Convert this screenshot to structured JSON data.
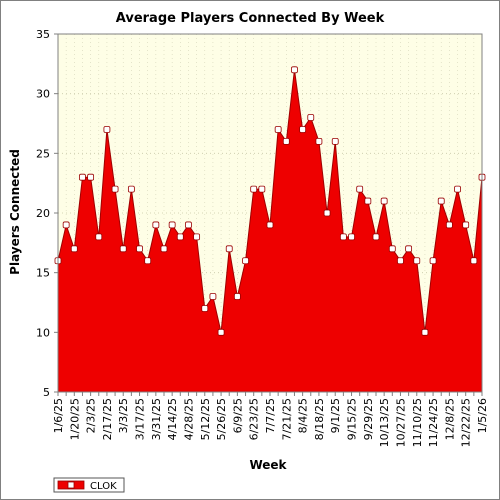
{
  "chart_data": {
    "type": "area",
    "title": "Average Players Connected By Week",
    "xlabel": "Week",
    "ylabel": "Players Connected",
    "ylim": [
      5,
      35
    ],
    "yticks": [
      5,
      10,
      15,
      20,
      25,
      30,
      35
    ],
    "grid": true,
    "legend_position": "bottom-left",
    "x": [
      "1/6/25",
      "1/13/25",
      "1/20/25",
      "1/27/25",
      "2/3/25",
      "2/10/25",
      "2/17/25",
      "2/24/25",
      "3/3/25",
      "3/10/25",
      "3/17/25",
      "3/24/25",
      "3/31/25",
      "4/7/25",
      "4/14/25",
      "4/21/25",
      "4/28/25",
      "5/5/25",
      "5/12/25",
      "5/19/25",
      "5/26/25",
      "6/2/25",
      "6/9/25",
      "6/16/25",
      "6/23/25",
      "6/30/25",
      "7/7/25",
      "7/14/25",
      "7/21/25",
      "7/28/25",
      "8/4/25",
      "8/11/25",
      "8/18/25",
      "8/25/25",
      "9/1/25",
      "9/8/25",
      "9/15/25",
      "9/22/25",
      "9/29/25",
      "10/6/25",
      "10/13/25",
      "10/20/25",
      "10/27/25",
      "11/3/25",
      "11/10/25",
      "11/17/25",
      "11/24/25",
      "12/1/25",
      "12/8/25",
      "12/15/25",
      "12/22/25",
      "12/29/25",
      "1/5/26"
    ],
    "tick_labels": [
      "1/6/25",
      "1/20/25",
      "2/3/25",
      "2/17/25",
      "3/3/25",
      "3/17/25",
      "3/31/25",
      "4/14/25",
      "4/28/25",
      "5/12/25",
      "5/26/25",
      "6/9/25",
      "6/23/25",
      "7/7/25",
      "7/21/25",
      "8/4/25",
      "8/18/25",
      "9/1/25",
      "9/15/25",
      "9/29/25",
      "10/13/25",
      "10/27/25",
      "11/10/25",
      "11/24/25",
      "12/8/25",
      "12/22/25",
      "1/5/26"
    ],
    "series": [
      {
        "name": "CLOK",
        "color": "#ee0000",
        "values": [
          16,
          19,
          17,
          23,
          23,
          18,
          27,
          22,
          17,
          22,
          17,
          16,
          19,
          17,
          19,
          18,
          19,
          18,
          12,
          13,
          10,
          17,
          13,
          16,
          22,
          22,
          19,
          27,
          26,
          32,
          27,
          28,
          26,
          20,
          26,
          18,
          18,
          22,
          21,
          18,
          21,
          17,
          16,
          17,
          16,
          10,
          16,
          21,
          19,
          22,
          19,
          16,
          23
        ]
      }
    ]
  }
}
